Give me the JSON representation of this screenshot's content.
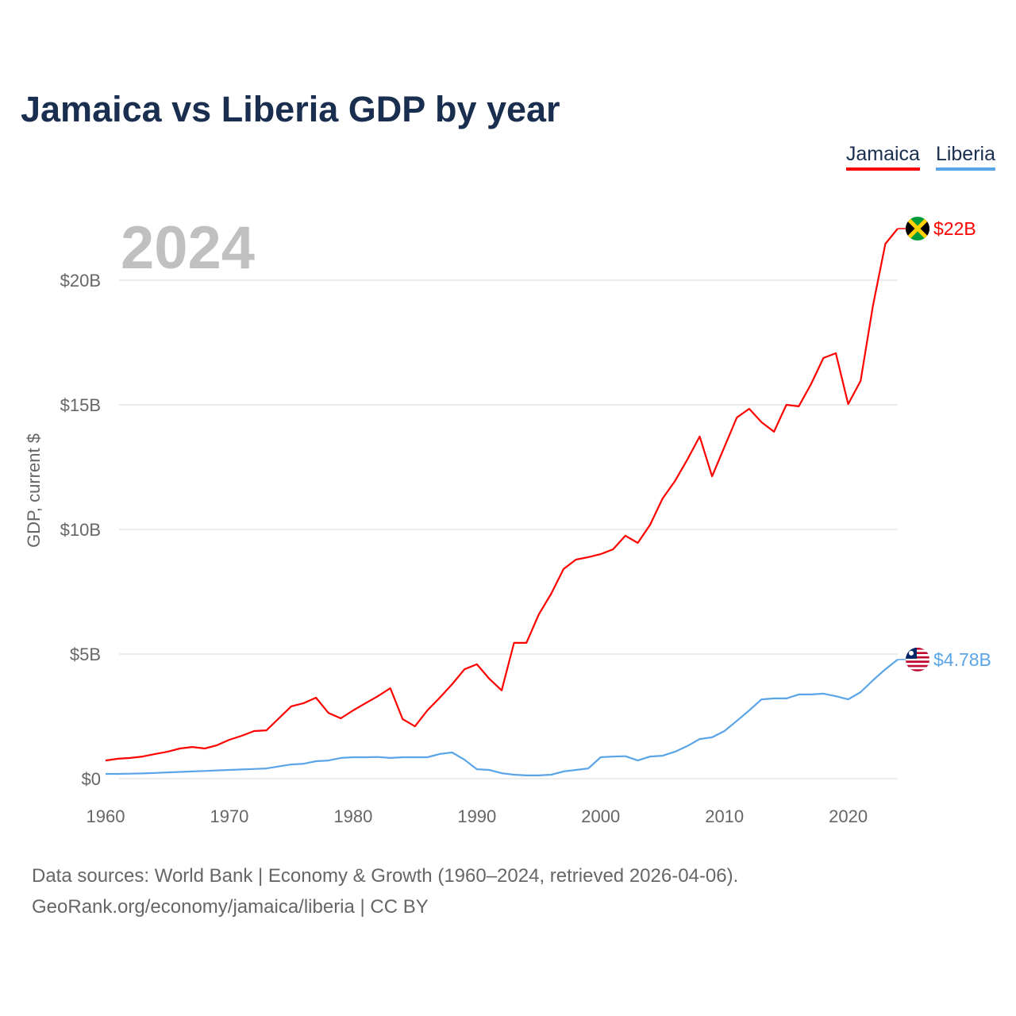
{
  "title": "Jamaica vs Liberia GDP by year",
  "source_line1": "Data sources: World Bank | Economy & Growth (1960–2024, retrieved 2026-04-06).",
  "source_line2": "GeoRank.org/economy/jamaica/liberia | CC BY",
  "chart_data": {
    "type": "line",
    "title": "Jamaica vs Liberia GDP by year",
    "xlabel": "",
    "ylabel": "GDP, current $",
    "watermark_year": "2024",
    "xlim": [
      1960,
      2024
    ],
    "ylim": [
      0,
      22
    ],
    "grid": true,
    "legend_position": "top-right",
    "x_ticks": [
      1960,
      1970,
      1980,
      1990,
      2000,
      2010,
      2020
    ],
    "x_tick_labels": [
      "1960",
      "1970",
      "1980",
      "1990",
      "2000",
      "2010",
      "2020"
    ],
    "y_ticks": [
      0,
      5,
      10,
      15,
      20
    ],
    "y_tick_labels": [
      "$0",
      "$5B",
      "$10B",
      "$15B",
      "$20B"
    ],
    "series": [
      {
        "name": "Jamaica",
        "color": "#ff0000",
        "end_label": "$22B",
        "flag": "jamaica-flag",
        "values": [
          0.73,
          0.8,
          0.83,
          0.89,
          0.99,
          1.08,
          1.21,
          1.27,
          1.21,
          1.34,
          1.56,
          1.72,
          1.91,
          1.94,
          2.42,
          2.9,
          3.03,
          3.25,
          2.64,
          2.42,
          2.74,
          3.03,
          3.31,
          3.63,
          2.39,
          2.1,
          2.74,
          3.25,
          3.79,
          4.39,
          4.59,
          4.01,
          3.54,
          5.45,
          5.45,
          6.59,
          7.42,
          8.41,
          8.79,
          8.89,
          9.01,
          9.2,
          9.75,
          9.46,
          10.19,
          11.24,
          11.94,
          12.8,
          13.73,
          12.13,
          13.31,
          14.49,
          14.84,
          14.3,
          13.92,
          15.0,
          14.94,
          15.83,
          16.88,
          17.07,
          15.03,
          15.96,
          18.98,
          21.46,
          22.07
        ]
      },
      {
        "name": "Liberia",
        "color": "#5aa5e8",
        "end_label": "$4.78B",
        "flag": "liberia-flag",
        "values": [
          0.19,
          0.19,
          0.2,
          0.21,
          0.23,
          0.25,
          0.27,
          0.29,
          0.31,
          0.33,
          0.35,
          0.37,
          0.39,
          0.41,
          0.49,
          0.57,
          0.6,
          0.7,
          0.73,
          0.83,
          0.86,
          0.86,
          0.87,
          0.83,
          0.86,
          0.86,
          0.86,
          0.99,
          1.05,
          0.76,
          0.38,
          0.35,
          0.22,
          0.16,
          0.13,
          0.13,
          0.16,
          0.29,
          0.35,
          0.41,
          0.86,
          0.89,
          0.9,
          0.73,
          0.89,
          0.92,
          1.08,
          1.31,
          1.59,
          1.66,
          1.91,
          2.32,
          2.74,
          3.18,
          3.22,
          3.22,
          3.38,
          3.38,
          3.41,
          3.31,
          3.18,
          3.47,
          3.95,
          4.39,
          4.78
        ]
      }
    ]
  }
}
